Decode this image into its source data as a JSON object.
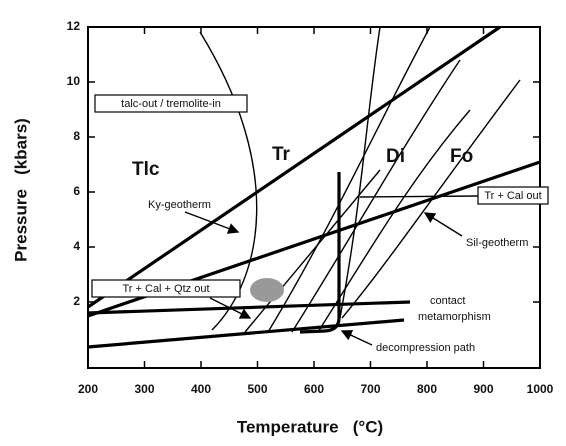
{
  "chart_data": {
    "type": "phase-diagram",
    "xlabel": "Temperature   (°C)",
    "ylabel": "Pressure   (kbars)",
    "xlim": [
      200,
      1000
    ],
    "ylim": [
      -0.4,
      12
    ],
    "xticks": [
      200,
      300,
      400,
      500,
      600,
      700,
      800,
      900,
      1000
    ],
    "yticks": [
      2,
      4,
      6,
      8,
      10,
      12
    ],
    "fields": [
      "Tlc",
      "Tr",
      "Di",
      "Fo"
    ],
    "annotations": [
      "talc-out / tremolite-in",
      "Ky-geotherm",
      "Tr + Cal  out",
      "Sil-geotherm",
      "Tr + Cal + Qtz out",
      "contact",
      "metamorphism",
      "decompression path"
    ]
  }
}
